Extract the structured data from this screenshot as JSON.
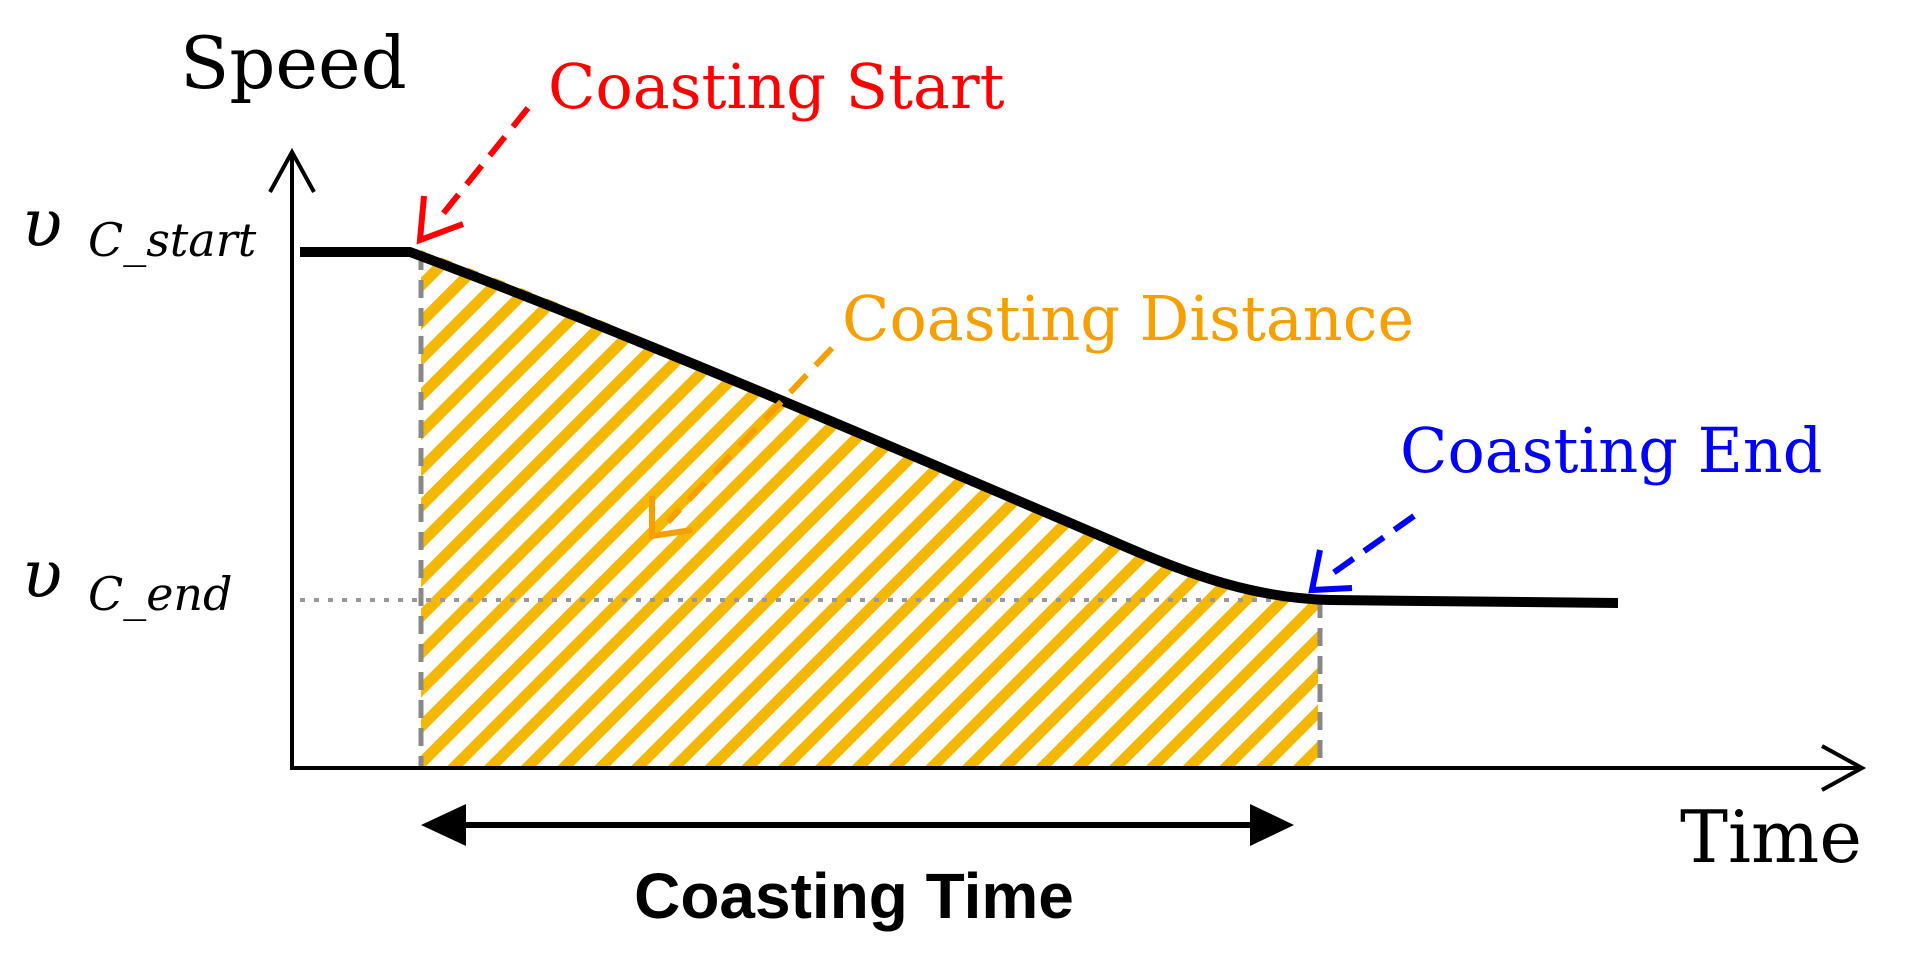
{
  "axes": {
    "y_label": "Speed",
    "x_label": "Time"
  },
  "speed_levels": {
    "start_symbol": "υ",
    "start_subscript": "C_start",
    "end_symbol": "υ",
    "end_subscript": "C_end"
  },
  "annotations": {
    "coasting_start": "Coasting Start",
    "coasting_distance": "Coasting Distance",
    "coasting_end": "Coasting End",
    "coasting_time": "Coasting Time"
  },
  "colors": {
    "curve": "#000000",
    "hatch": "#f5b800",
    "coasting_start": "#ff0000",
    "coasting_distance": "#f5a000",
    "coasting_end": "#0000ff",
    "guide": "#888888"
  }
}
